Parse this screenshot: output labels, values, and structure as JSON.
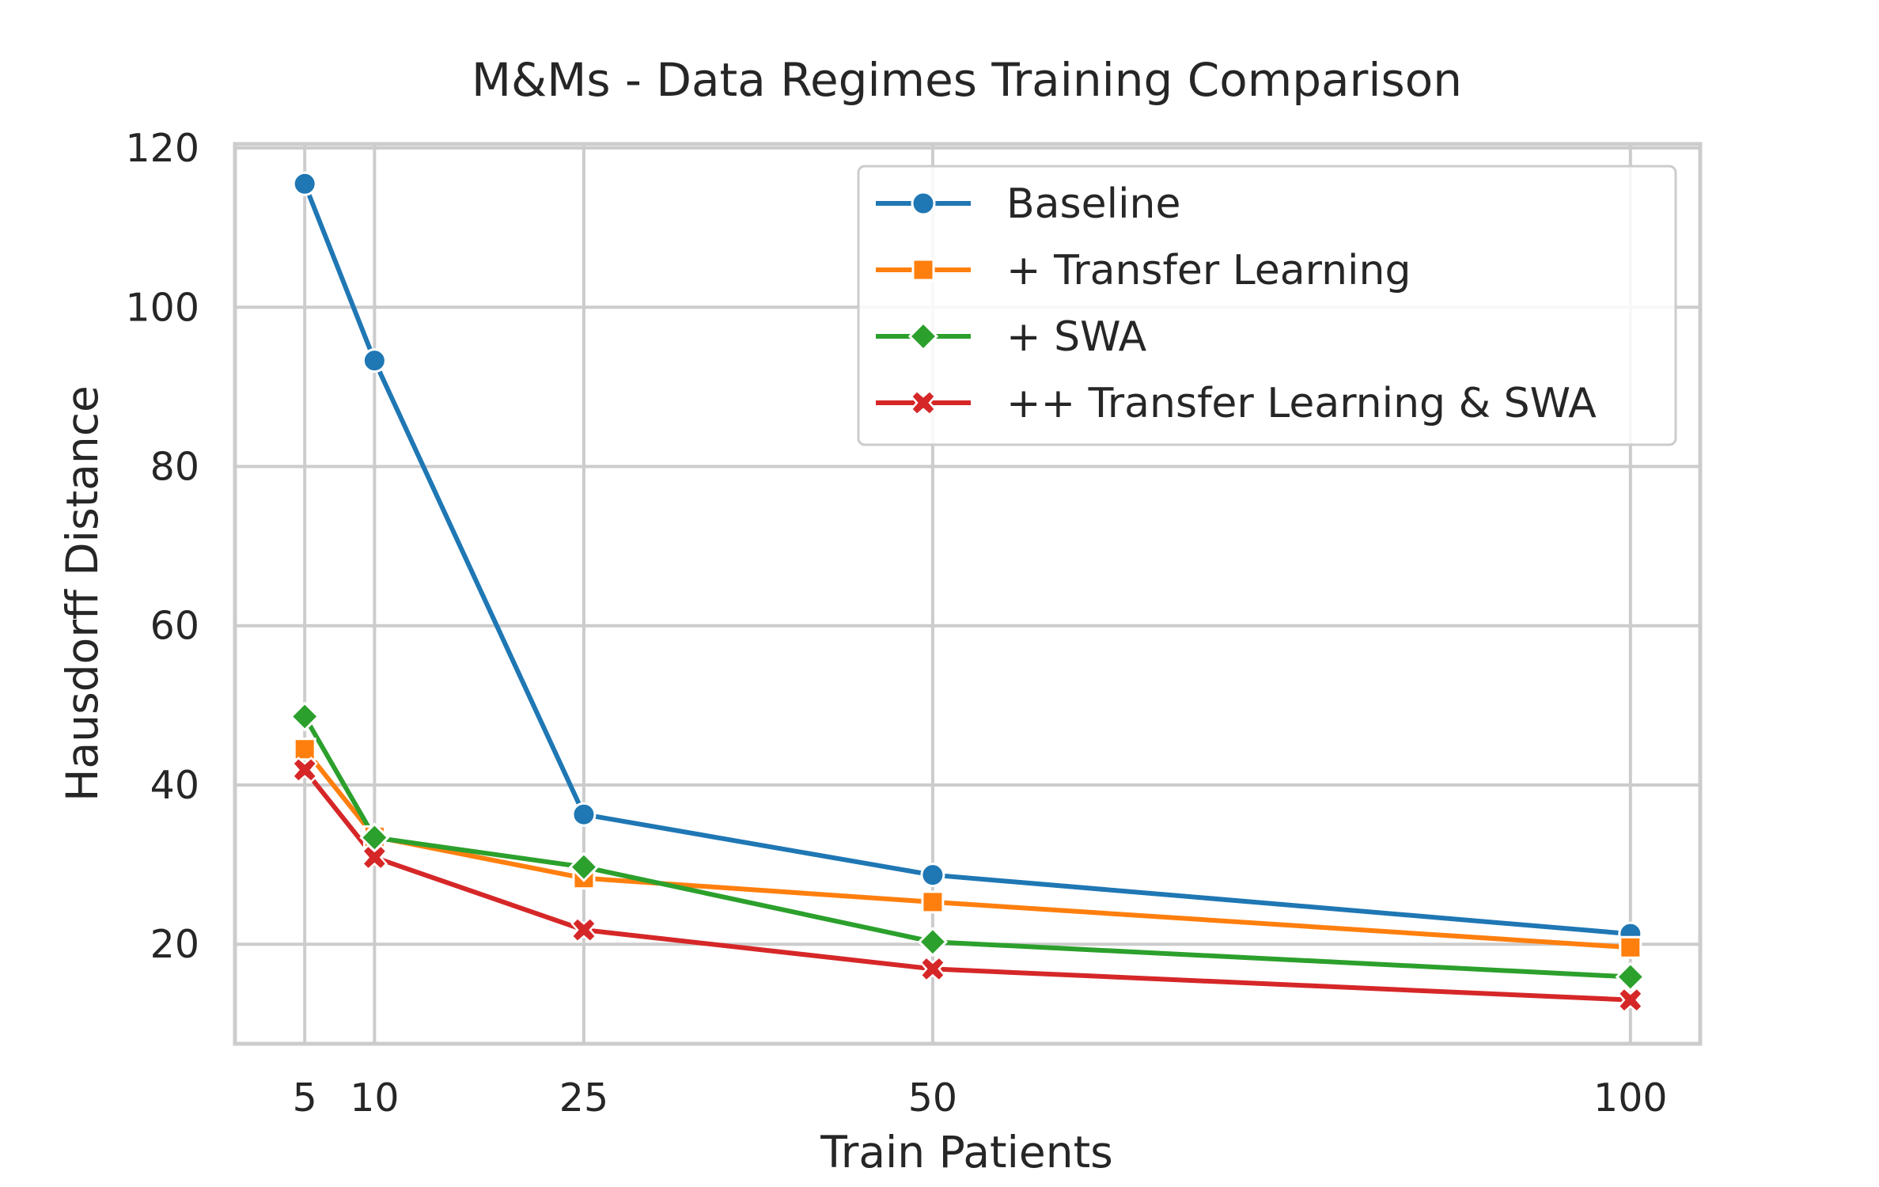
{
  "chart_data": {
    "type": "line",
    "title": "M&Ms - Data Regimes Training Comparison",
    "xlabel": "Train Patients",
    "ylabel": "Hausdorff Distance",
    "x": [
      5,
      10,
      25,
      50,
      100
    ],
    "x_ticks": [
      5,
      10,
      25,
      50,
      100
    ],
    "y_ticks": [
      20,
      40,
      60,
      80,
      100,
      120
    ],
    "xlim": [
      0,
      105
    ],
    "ylim": [
      7.5,
      120.5
    ],
    "grid": true,
    "legend_position": "top-right",
    "series": [
      {
        "name": "Baseline",
        "color": "#1f77b4",
        "marker": "circle",
        "values": [
          115.5,
          93.3,
          36.3,
          28.7,
          21.3
        ]
      },
      {
        "name": "+ Transfer Learning",
        "color": "#ff7f0e",
        "marker": "square",
        "values": [
          44.5,
          33.5,
          28.3,
          25.3,
          19.6
        ]
      },
      {
        "name": "+ SWA",
        "color": "#2ca02c",
        "marker": "diamond",
        "values": [
          48.6,
          33.4,
          29.7,
          20.3,
          15.9
        ]
      },
      {
        "name": "++ Transfer Learning & SWA",
        "color": "#d62728",
        "marker": "x",
        "values": [
          41.9,
          30.9,
          21.8,
          16.9,
          13.0
        ]
      }
    ]
  }
}
